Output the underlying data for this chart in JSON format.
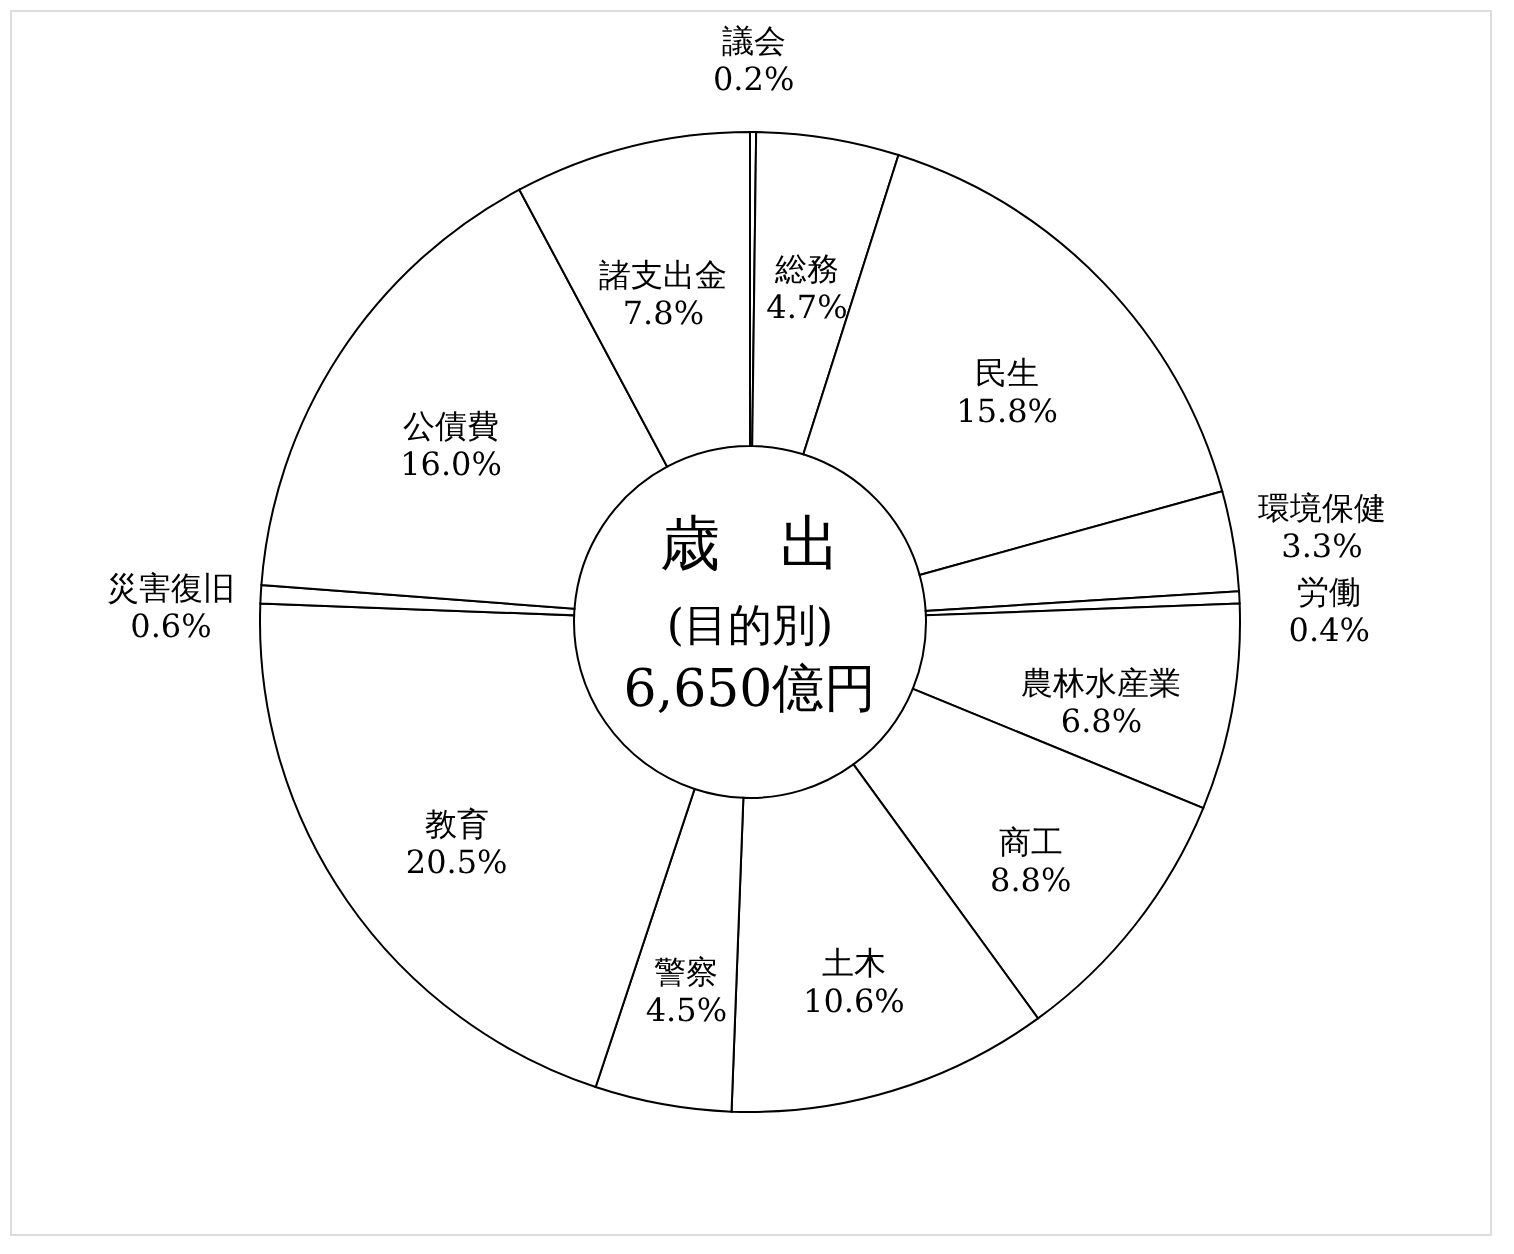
{
  "chart_data": {
    "type": "donut",
    "title": "歳　出",
    "annotations": [
      "(目的別)",
      "6,650億円"
    ],
    "categories": [
      "議会",
      "総務",
      "民生",
      "環境保健",
      "労働",
      "農林水産業",
      "商工",
      "土木",
      "警察",
      "教育",
      "災害復旧",
      "公債費",
      "諸支出金"
    ],
    "values": [
      0.2,
      4.7,
      15.8,
      3.3,
      0.4,
      6.8,
      8.8,
      10.6,
      4.5,
      20.5,
      0.6,
      16.0,
      7.8
    ],
    "value_labels": [
      "0.2%",
      "4.7%",
      "15.8%",
      "3.3%",
      "0.4%",
      "6.8%",
      "8.8%",
      "10.6%",
      "4.5%",
      "20.5%",
      "0.6%",
      "16.0%",
      "7.8%"
    ],
    "colors": [
      "#ffffff",
      "#ffffff",
      "#ffffff",
      "#ffffff",
      "#ffffff",
      "#ffffff",
      "#ffffff",
      "#ffffff",
      "#ffffff",
      "#ffffff",
      "#ffffff",
      "#ffffff",
      "#ffffff"
    ],
    "legend": false
  }
}
